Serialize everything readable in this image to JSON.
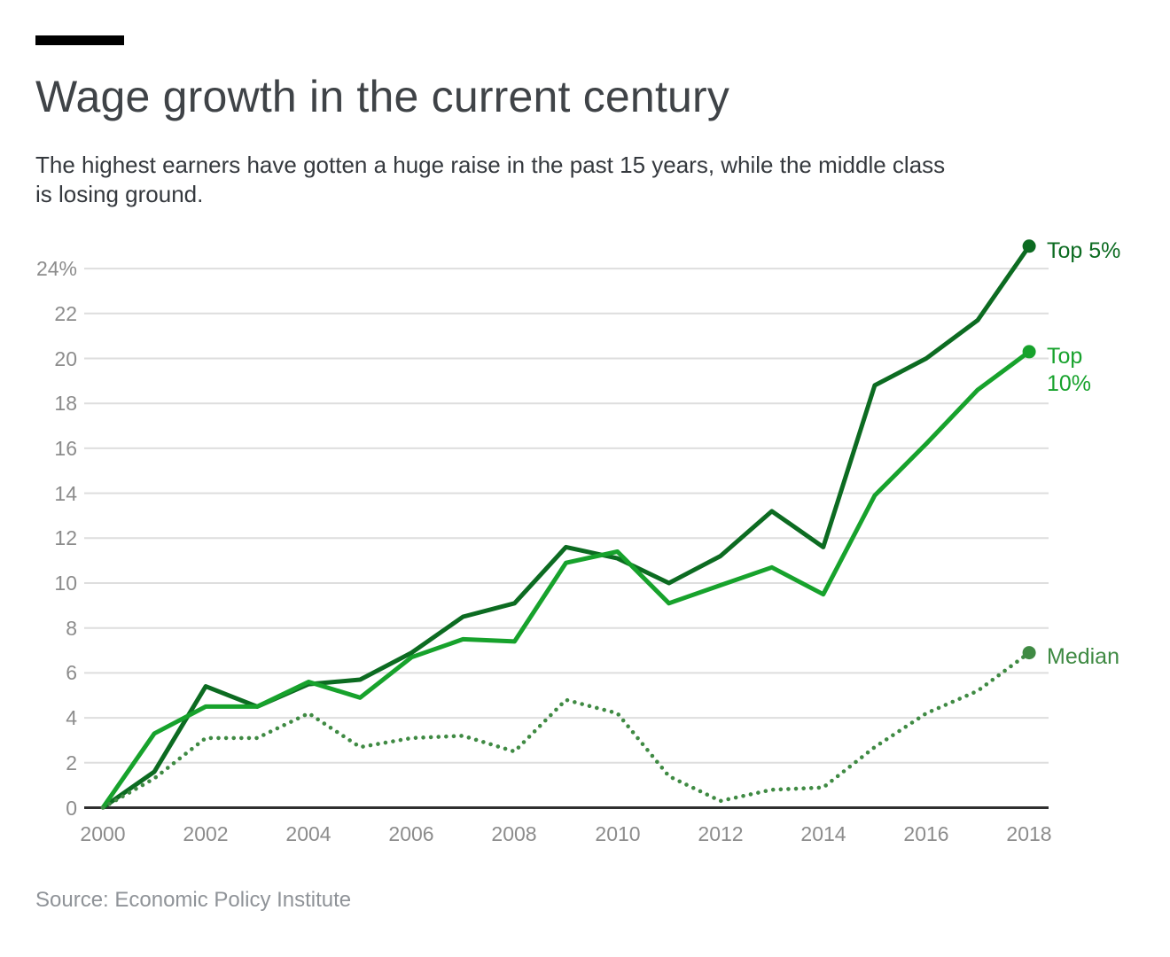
{
  "page": {
    "kicker_bar_color": "#000000",
    "title": "Wage growth in the current century",
    "subtitle_lines": [
      "The highest earners have gotten a huge raise in the past 15 years, while the middle class",
      "is losing ground."
    ],
    "source": "Source: Economic Policy Institute"
  },
  "colors": {
    "background": "#ffffff",
    "title_text": "#3f4347",
    "subtitle_text": "#35393e",
    "source_text": "#8f9398",
    "tick_label_text": "#8c8c8c",
    "gridline": "#dedede",
    "axis_line": "#2f2f2f",
    "top5_green": "#0c6b21",
    "top10_green": "#17a22c",
    "median_green": "#3f8a43"
  },
  "chart_data": {
    "type": "line",
    "title": "Wage growth in the current century",
    "xlabel": "",
    "ylabel": "",
    "grid": "horizontal",
    "legend_position": "right of line endpoints",
    "xlim": [
      2000,
      2018
    ],
    "ylim": [
      0,
      25.2
    ],
    "x": [
      2000,
      2001,
      2002,
      2003,
      2004,
      2005,
      2006,
      2007,
      2008,
      2009,
      2010,
      2011,
      2012,
      2013,
      2014,
      2015,
      2016,
      2017,
      2018
    ],
    "x_ticks": [
      2000,
      2002,
      2004,
      2006,
      2008,
      2010,
      2012,
      2014,
      2016,
      2018
    ],
    "y_ticks": [
      0,
      2,
      4,
      6,
      8,
      10,
      12,
      14,
      16,
      18,
      20,
      22,
      24
    ],
    "y_tick_labels": [
      "0",
      "2",
      "4",
      "6",
      "8",
      "10",
      "12",
      "14",
      "16",
      "18",
      "20",
      "22",
      "24%"
    ],
    "series": [
      {
        "name": "Top 5%",
        "color": "#0c6b21",
        "style": "solid",
        "end_dot": true,
        "values": [
          0,
          1.6,
          5.4,
          4.5,
          5.5,
          5.7,
          6.9,
          8.5,
          9.1,
          11.6,
          11.1,
          10.0,
          11.2,
          13.2,
          11.6,
          18.8,
          20.0,
          21.7,
          25.0
        ]
      },
      {
        "name": "Top 10%",
        "color": "#17a22c",
        "style": "solid",
        "end_dot": true,
        "values": [
          0,
          3.3,
          4.5,
          4.5,
          5.6,
          4.9,
          6.7,
          7.5,
          7.4,
          10.9,
          11.4,
          9.1,
          9.9,
          10.7,
          9.5,
          13.9,
          16.2,
          18.6,
          20.3
        ]
      },
      {
        "name": "Median",
        "color": "#3f8a43",
        "style": "dotted",
        "end_dot": true,
        "values": [
          0,
          1.3,
          3.1,
          3.1,
          4.2,
          2.7,
          3.1,
          3.2,
          2.5,
          4.8,
          4.2,
          1.4,
          0.3,
          0.8,
          0.9,
          2.7,
          4.2,
          5.2,
          6.9
        ]
      }
    ]
  }
}
